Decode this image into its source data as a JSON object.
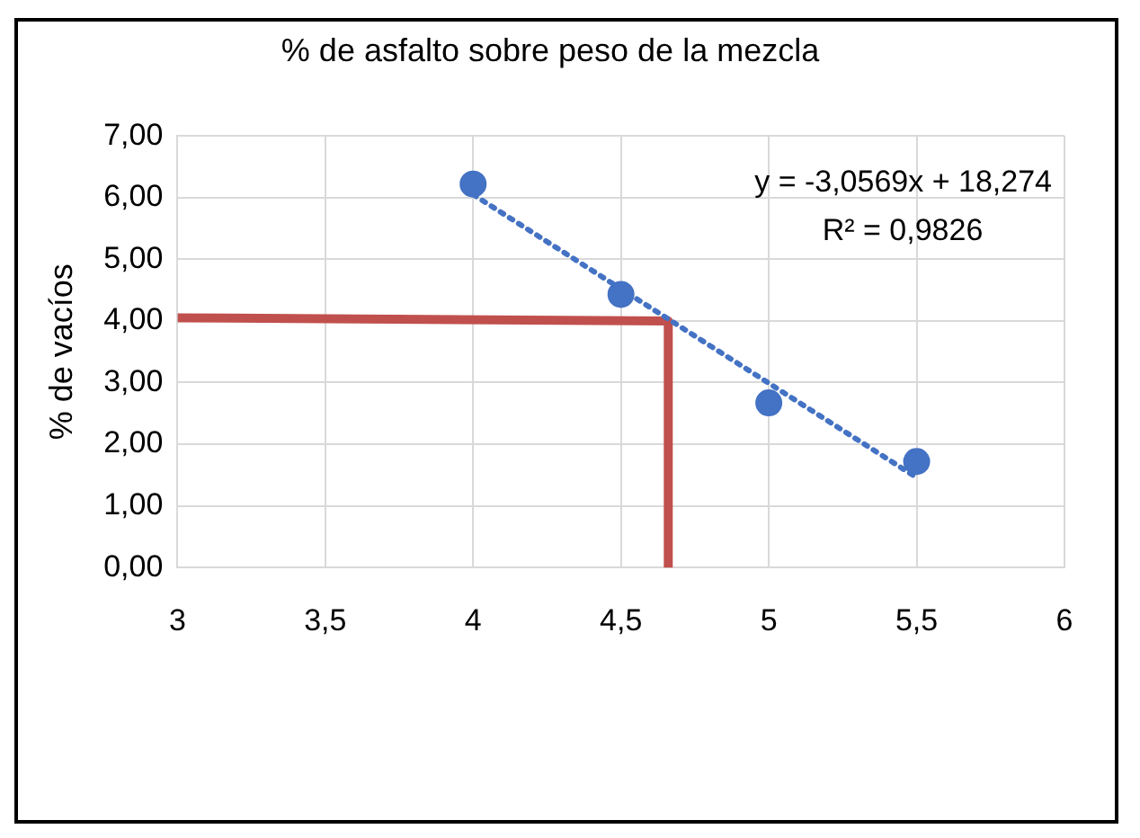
{
  "chart_data": {
    "type": "scatter",
    "title": "% de asfalto sobre peso de la mezcla",
    "ylabel": "% de vacíos",
    "x": [
      4,
      4.5,
      5,
      5.5
    ],
    "series": [
      {
        "type": "scatter",
        "color": "#4472c4",
        "marker": "circle",
        "values": [
          6.22,
          4.43,
          2.67,
          1.72
        ]
      },
      {
        "type": "line",
        "color": "#4472c4",
        "marker": "none",
        "line_style": "dotted",
        "x": [
          4,
          5.5
        ],
        "values": [
          6.05,
          1.46
        ]
      },
      {
        "type": "line",
        "color": "#c0504d",
        "marker": "none",
        "line_style": "solid",
        "x": [
          3,
          4.66,
          4.66
        ],
        "values": [
          4.05,
          4,
          0
        ]
      }
    ],
    "xlim": [
      3,
      6
    ],
    "xticks": [
      3,
      {
        "value": 3.5,
        "label": "3,5"
      },
      4,
      {
        "value": 4.5,
        "label": "4,5"
      },
      5,
      {
        "value": 5.5,
        "label": "5,5"
      },
      6
    ],
    "ylim": [
      0,
      7
    ],
    "yticks": [
      {
        "value": 0,
        "label": "0,00"
      },
      {
        "value": 1,
        "label": "1,00"
      },
      {
        "value": 2,
        "label": "2,00"
      },
      {
        "value": 3,
        "label": "3,00"
      },
      {
        "value": 4,
        "label": "4,00"
      },
      {
        "value": 5,
        "label": "5,00"
      },
      {
        "value": 6,
        "label": "6,00"
      },
      {
        "value": 7,
        "label": "7,00"
      }
    ],
    "grid": true,
    "legend": false,
    "annotations": [
      "y = -3,0569x + 18,274",
      "R² = 0,9826"
    ]
  }
}
